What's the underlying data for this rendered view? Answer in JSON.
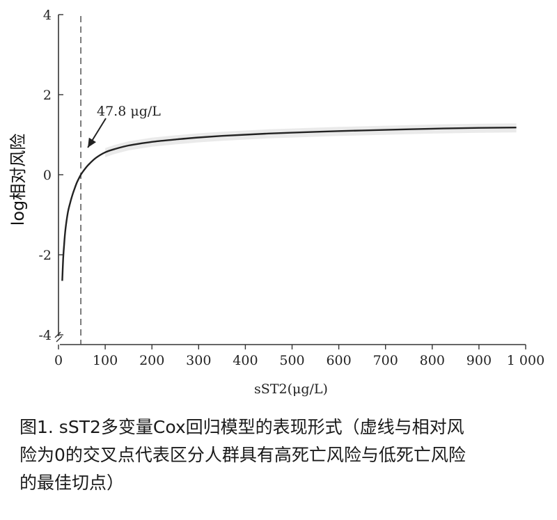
{
  "chart_data": {
    "type": "line",
    "xlabel": "sST2(μg/L)",
    "ylabel": "log相对风险",
    "xlim": [
      0,
      1000
    ],
    "ylim": [
      -4,
      4
    ],
    "x_ticks": [
      0,
      100,
      200,
      300,
      400,
      500,
      600,
      700,
      800,
      900,
      1000
    ],
    "x_tick_labels": [
      "0",
      "100",
      "200",
      "300",
      "400",
      "500",
      "600",
      "700",
      "800",
      "900",
      "1 000"
    ],
    "y_ticks": [
      4,
      2,
      0,
      -2,
      -4
    ],
    "y_tick_labels": [
      "4",
      "2",
      "0",
      "-2",
      "-4"
    ],
    "series": [
      {
        "x": [
          8,
          10,
          12,
          15,
          20,
          25,
          30,
          35,
          40,
          47.8,
          55,
          65,
          80,
          100,
          120,
          150,
          200,
          250,
          300,
          350,
          400,
          450,
          500,
          600,
          700,
          800,
          900,
          980
        ],
        "y": [
          -2.65,
          -2.1,
          -1.75,
          -1.35,
          -0.95,
          -0.7,
          -0.5,
          -0.33,
          -0.18,
          0.0,
          0.12,
          0.26,
          0.42,
          0.56,
          0.64,
          0.73,
          0.82,
          0.88,
          0.93,
          0.97,
          1.0,
          1.03,
          1.05,
          1.09,
          1.12,
          1.15,
          1.17,
          1.18
        ]
      }
    ],
    "cutoff": {
      "x": 47.8,
      "style": "dashed vertical line"
    },
    "annotation": {
      "text": "47.8 μg/L",
      "arrow_to_x": 47.8
    },
    "grid": false,
    "legend": "none"
  },
  "caption": {
    "lines": [
      "图1. sST2多变量Cox回归模型的表现形式（虚线与相对风",
      "险为0的交叉点代表区分人群具有高死亡风险与低死亡风险",
      "的最佳切点）"
    ]
  }
}
